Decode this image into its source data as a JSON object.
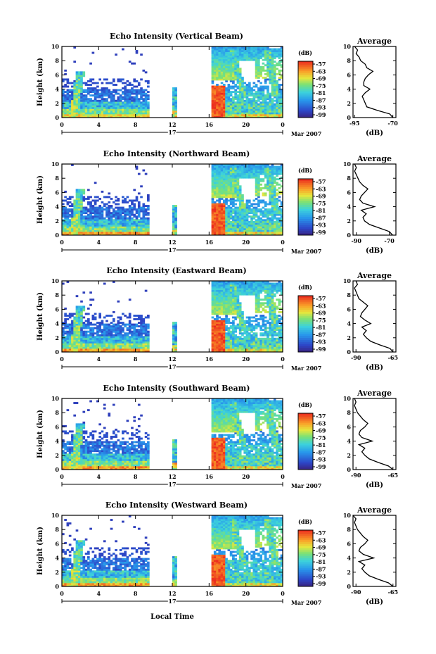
{
  "chart_data": [
    {
      "type": "heatmap",
      "title": "Echo Intensity (Vertical Beam)",
      "ylabel": "Height (km)",
      "ylim": [
        0,
        10
      ],
      "yticks": [
        "0",
        "2",
        "4",
        "6",
        "8",
        "10"
      ],
      "xlim": [
        0,
        24
      ],
      "xticks": [
        "0",
        "4",
        "8",
        "12",
        "16",
        "20",
        "0"
      ],
      "date_day": "17",
      "date_month": "Mar 2007",
      "colorbar": {
        "unit": "(dB)",
        "ticks": [
          "-57",
          "-63",
          "-69",
          "-75",
          "-81",
          "-87",
          "-93",
          "-99"
        ]
      },
      "average": {
        "title": "Average",
        "xlabel": "(dB)",
        "xticks": [
          "-95",
          "-70"
        ],
        "xlim": [
          -96,
          -68
        ],
        "profile": [
          [
            -70,
            0
          ],
          [
            -72,
            0.5
          ],
          [
            -80,
            1
          ],
          [
            -87,
            1.5
          ],
          [
            -89,
            2.5
          ],
          [
            -90,
            3
          ],
          [
            -88,
            3.5
          ],
          [
            -85,
            4
          ],
          [
            -89,
            4.5
          ],
          [
            -89,
            5
          ],
          [
            -88,
            5.5
          ],
          [
            -86,
            6
          ],
          [
            -83,
            6.5
          ],
          [
            -87,
            7
          ],
          [
            -88,
            7.5
          ],
          [
            -91,
            8
          ],
          [
            -92,
            8.5
          ],
          [
            -94,
            9
          ],
          [
            -93,
            9.5
          ],
          [
            -95,
            10
          ]
        ]
      }
    },
    {
      "type": "heatmap",
      "title": "Echo Intensity (Northward Beam)",
      "ylabel": "Height (km)",
      "ylim": [
        0,
        10
      ],
      "yticks": [
        "0",
        "2",
        "4",
        "6",
        "8",
        "10"
      ],
      "xlim": [
        0,
        24
      ],
      "xticks": [
        "0",
        "4",
        "8",
        "12",
        "16",
        "20",
        "0"
      ],
      "date_day": "17",
      "date_month": "Mar 2007",
      "colorbar": {
        "unit": "(dB)",
        "ticks": [
          "-57",
          "-63",
          "-69",
          "-75",
          "-81",
          "-87",
          "-93",
          "-99"
        ]
      },
      "average": {
        "title": "Average",
        "xlabel": "(dB)",
        "xticks": [
          "-90",
          "-70"
        ],
        "xlim": [
          -92,
          -66
        ],
        "profile": [
          [
            -68,
            0
          ],
          [
            -70,
            0.5
          ],
          [
            -76,
            1
          ],
          [
            -82,
            1.5
          ],
          [
            -85,
            2
          ],
          [
            -86,
            2.5
          ],
          [
            -84,
            3
          ],
          [
            -87,
            3.5
          ],
          [
            -79,
            4
          ],
          [
            -86,
            4.5
          ],
          [
            -88,
            5
          ],
          [
            -87,
            5.5
          ],
          [
            -85,
            6
          ],
          [
            -83,
            6.5
          ],
          [
            -86,
            7
          ],
          [
            -88,
            7.5
          ],
          [
            -89,
            8
          ],
          [
            -90,
            8.5
          ],
          [
            -91,
            9
          ],
          [
            -90,
            9.5
          ],
          [
            -91,
            10
          ]
        ]
      }
    },
    {
      "type": "heatmap",
      "title": "Echo Intensity (Eastward Beam)",
      "ylabel": "Height (km)",
      "ylim": [
        0,
        10
      ],
      "yticks": [
        "0",
        "2",
        "4",
        "6",
        "8",
        "10"
      ],
      "xlim": [
        0,
        24
      ],
      "xticks": [
        "0",
        "4",
        "8",
        "12",
        "16",
        "20",
        "0"
      ],
      "date_day": "17",
      "date_month": "Mar 2007",
      "colorbar": {
        "unit": "(dB)",
        "ticks": [
          "-57",
          "-63",
          "-69",
          "-75",
          "-81",
          "-87",
          "-93",
          "-99"
        ]
      },
      "average": {
        "title": "Average",
        "xlabel": "(dB)",
        "xticks": [
          "-90",
          "-65"
        ],
        "xlim": [
          -92,
          -63
        ],
        "profile": [
          [
            -65,
            0
          ],
          [
            -67,
            0.5
          ],
          [
            -74,
            1
          ],
          [
            -80,
            1.5
          ],
          [
            -83,
            2
          ],
          [
            -85,
            2.5
          ],
          [
            -83,
            3
          ],
          [
            -86,
            3.5
          ],
          [
            -80,
            4
          ],
          [
            -84,
            4.5
          ],
          [
            -87,
            5
          ],
          [
            -86,
            5.5
          ],
          [
            -84,
            6
          ],
          [
            -82,
            6.5
          ],
          [
            -85,
            7
          ],
          [
            -88,
            7.5
          ],
          [
            -89,
            8
          ],
          [
            -90,
            8.5
          ],
          [
            -91,
            9
          ],
          [
            -89,
            9.5
          ],
          [
            -90,
            10
          ]
        ]
      }
    },
    {
      "type": "heatmap",
      "title": "Echo Intensity (Southward Beam)",
      "ylabel": "Height (km)",
      "ylim": [
        0,
        10
      ],
      "yticks": [
        "0",
        "2",
        "4",
        "6",
        "8",
        "10"
      ],
      "xlim": [
        0,
        24
      ],
      "xticks": [
        "0",
        "4",
        "8",
        "12",
        "16",
        "20",
        "0"
      ],
      "date_day": "17",
      "date_month": "Mar 2007",
      "colorbar": {
        "unit": "(dB)",
        "ticks": [
          "-57",
          "-63",
          "-69",
          "-75",
          "-81",
          "-87",
          "-93",
          "-99"
        ]
      },
      "average": {
        "title": "Average",
        "xlabel": "(dB)",
        "xticks": [
          "-90",
          "-65"
        ],
        "xlim": [
          -92,
          -63
        ],
        "profile": [
          [
            -65,
            0
          ],
          [
            -68,
            0.5
          ],
          [
            -75,
            1
          ],
          [
            -81,
            1.5
          ],
          [
            -84,
            2
          ],
          [
            -86,
            2.5
          ],
          [
            -84,
            3
          ],
          [
            -88,
            3.5
          ],
          [
            -79,
            4
          ],
          [
            -86,
            4.5
          ],
          [
            -88,
            5
          ],
          [
            -87,
            5.5
          ],
          [
            -84,
            6
          ],
          [
            -82,
            6.5
          ],
          [
            -85,
            7
          ],
          [
            -87,
            7.5
          ],
          [
            -89,
            8
          ],
          [
            -90,
            8.5
          ],
          [
            -91,
            9
          ],
          [
            -90,
            9.5
          ],
          [
            -91,
            10
          ]
        ]
      }
    },
    {
      "type": "heatmap",
      "title": "Echo Intensity (Westward Beam)",
      "ylabel": "Height (km)",
      "ylim": [
        0,
        10
      ],
      "yticks": [
        "0",
        "2",
        "4",
        "6",
        "8",
        "10"
      ],
      "xlim": [
        0,
        24
      ],
      "xticks": [
        "0",
        "4",
        "8",
        "12",
        "16",
        "20",
        "0"
      ],
      "date_day": "17",
      "date_month": "Mar 2007",
      "colorbar": {
        "unit": "(dB)",
        "ticks": [
          "-57",
          "-63",
          "-69",
          "-75",
          "-81",
          "-87",
          "-93",
          "-99"
        ]
      },
      "average": {
        "title": "Average",
        "xlabel": "(dB)",
        "xticks": [
          "-90",
          "-65"
        ],
        "xlim": [
          -92,
          -63
        ],
        "profile": [
          [
            -65,
            0
          ],
          [
            -68,
            0.5
          ],
          [
            -75,
            1
          ],
          [
            -81,
            1.5
          ],
          [
            -84,
            2
          ],
          [
            -86,
            2.5
          ],
          [
            -84,
            3
          ],
          [
            -88,
            3.5
          ],
          [
            -78,
            4
          ],
          [
            -85,
            4.5
          ],
          [
            -88,
            5
          ],
          [
            -87,
            5.5
          ],
          [
            -84,
            6
          ],
          [
            -82,
            6.5
          ],
          [
            -85,
            7
          ],
          [
            -87,
            7.5
          ],
          [
            -89,
            8
          ],
          [
            -90,
            8.5
          ],
          [
            -91,
            9
          ],
          [
            -90,
            9.5
          ],
          [
            -92,
            10
          ]
        ]
      }
    }
  ],
  "xlabel": "Local Time"
}
